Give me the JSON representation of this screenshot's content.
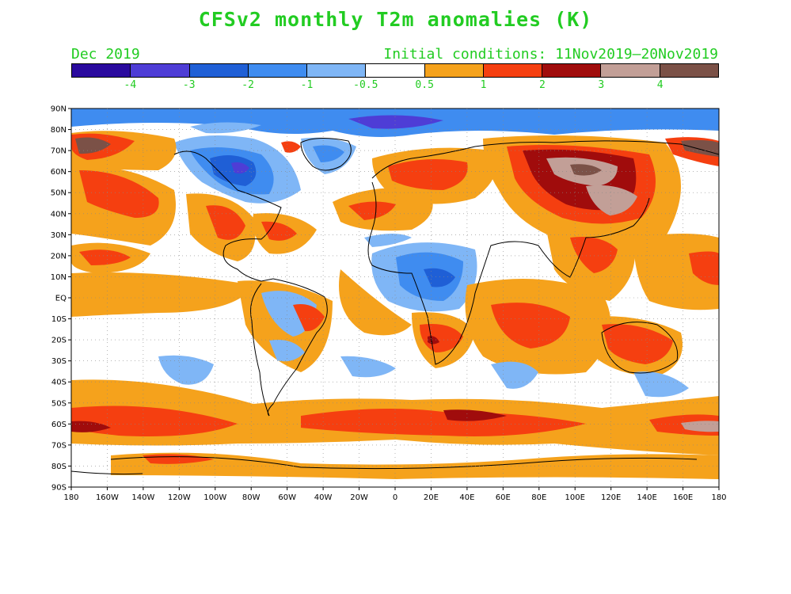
{
  "title": "CFSv2 monthly T2m anomalies (K)",
  "valid_month": "Dec 2019",
  "initial_conditions": "Initial conditions: 11Nov2019—20Nov2019",
  "colorbar": {
    "colors": [
      "#2a0a9e",
      "#4e3dd6",
      "#1f5fd6",
      "#3f8cf0",
      "#7fb6f6",
      "#ffffff",
      "#f5a21c",
      "#f53f10",
      "#a00c0c",
      "#c29f97",
      "#7b5147"
    ],
    "labels": [
      "-4",
      "-3",
      "-2",
      "-1",
      "-0.5",
      "0.5",
      "1",
      "2",
      "3",
      "4"
    ]
  },
  "lat_labels": [
    "90N",
    "80N",
    "70N",
    "60N",
    "50N",
    "40N",
    "30N",
    "20N",
    "10N",
    "EQ",
    "10S",
    "20S",
    "30S",
    "40S",
    "50S",
    "60S",
    "70S",
    "80S",
    "90S"
  ],
  "lon_labels": [
    "180",
    "160W",
    "140W",
    "120W",
    "100W",
    "80W",
    "60W",
    "40W",
    "20W",
    "0",
    "20E",
    "40E",
    "60E",
    "80E",
    "100E",
    "120E",
    "140E",
    "160E",
    "180"
  ]
}
